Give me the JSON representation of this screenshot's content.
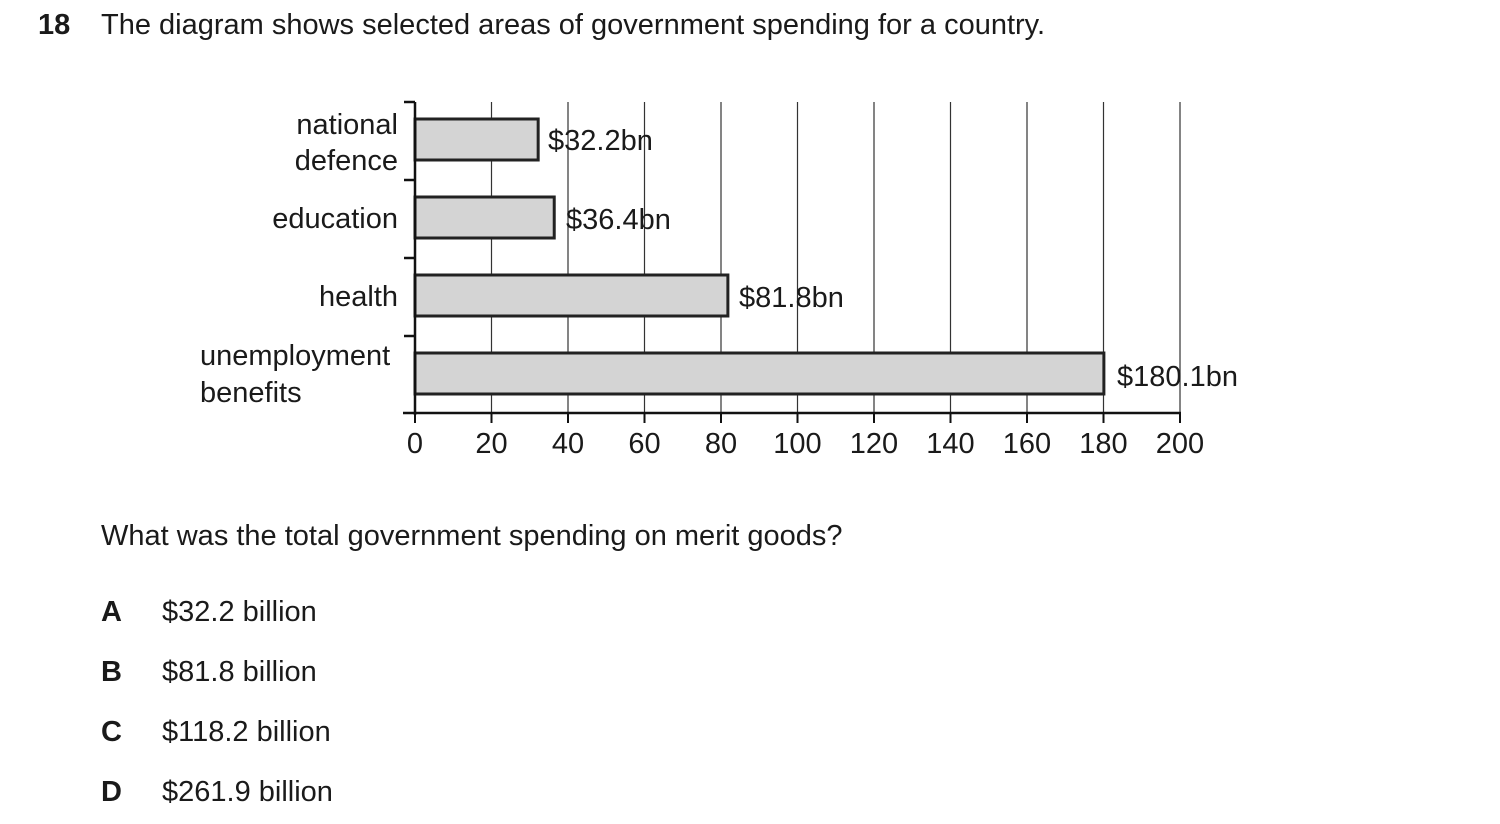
{
  "question": {
    "number": "18",
    "text": "The diagram shows selected areas of government spending for a country.",
    "prompt": "What was the total government spending on merit goods?"
  },
  "chart_data": {
    "type": "bar",
    "orientation": "horizontal",
    "title": "",
    "xlabel": "",
    "ylabel": "",
    "xlim": [
      0,
      200
    ],
    "x_ticks": [
      0,
      20,
      40,
      60,
      80,
      100,
      120,
      140,
      160,
      180,
      200
    ],
    "grid": true,
    "categories": [
      {
        "lines": [
          "national",
          "defence"
        ],
        "value": 32.2,
        "label": "$32.2bn"
      },
      {
        "lines": [
          "education"
        ],
        "value": 36.4,
        "label": "$36.4bn"
      },
      {
        "lines": [
          "health"
        ],
        "value": 81.8,
        "label": "$81.8bn"
      },
      {
        "lines": [
          "unemployment",
          "benefits"
        ],
        "value": 180.1,
        "label": "$180.1bn"
      }
    ],
    "colors": {
      "bar_fill": "#d4d4d4",
      "bar_stroke": "#222222",
      "grid": "#333333"
    }
  },
  "options": [
    {
      "letter": "A",
      "text": "$32.2 billion"
    },
    {
      "letter": "B",
      "text": "$81.8 billion"
    },
    {
      "letter": "C",
      "text": "$118.2 billion"
    },
    {
      "letter": "D",
      "text": "$261.9 billion"
    }
  ]
}
